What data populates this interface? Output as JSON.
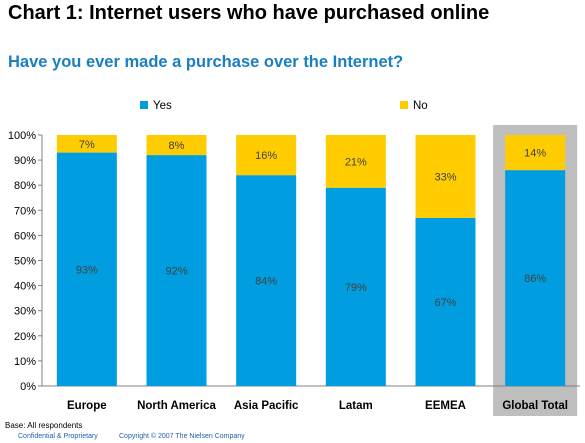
{
  "header": {
    "title": "Chart 1: Internet users who have purchased online",
    "subtitle": "Have you ever made a purchase over the Internet?"
  },
  "footer": {
    "base": "Base: All respondents",
    "confidential": "Confidential & Proprietary",
    "copyright": "Copyright © 2007 The Nielsen Company"
  },
  "colors": {
    "yes": "#009ee0",
    "no": "#ffcc00",
    "highlight_bg": "#bebebe",
    "label_dark": "#404040"
  },
  "chart_data": {
    "type": "bar",
    "stacked": true,
    "categories": [
      "Europe",
      "North America",
      "Asia Pacific",
      "Latam",
      "EEMEA",
      "Global Total"
    ],
    "series": [
      {
        "name": "Yes",
        "values": [
          93,
          92,
          84,
          79,
          67,
          86
        ],
        "labels": [
          "93%",
          "92%",
          "84%",
          "79%",
          "67%",
          "86%"
        ]
      },
      {
        "name": "No",
        "values": [
          7,
          8,
          16,
          21,
          33,
          14
        ],
        "labels": [
          "7%",
          "8%",
          "16%",
          "21%",
          "33%",
          "14%"
        ]
      }
    ],
    "ylim": [
      0,
      100
    ],
    "yticks": [
      "0%",
      "10%",
      "20%",
      "30%",
      "40%",
      "50%",
      "60%",
      "70%",
      "80%",
      "90%",
      "100%"
    ],
    "grid": false,
    "legend_position": "top",
    "highlighted_category": "Global Total"
  }
}
